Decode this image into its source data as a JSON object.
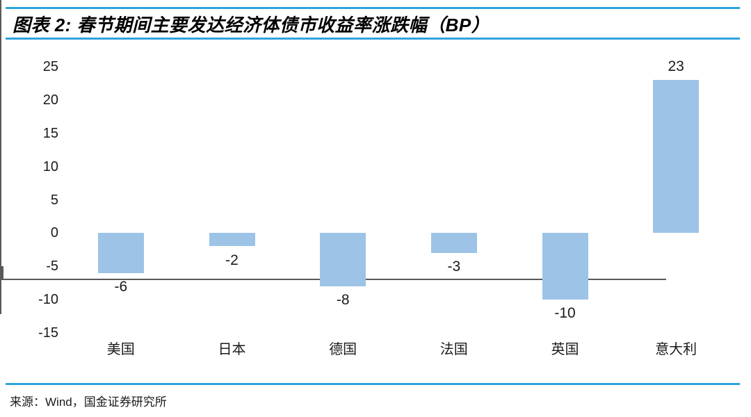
{
  "header": {
    "title": "图表 2: 春节期间主要发达经济体债市收益率涨跌幅（BP）"
  },
  "footer": {
    "source": "来源：Wind，国金证券研究所"
  },
  "colors": {
    "bar": "#9DC3E6",
    "axis": "#595959",
    "rule_blue": "#2EA3DC",
    "text": "#1a1a1a"
  },
  "chart_data": {
    "type": "bar",
    "title": "春节期间主要发达经济体债市收益率涨跌幅（BP）",
    "categories": [
      "美国",
      "日本",
      "德国",
      "法国",
      "英国",
      "意大利"
    ],
    "values": [
      -6,
      -2,
      -8,
      -3,
      -10,
      23
    ],
    "data_labels": [
      "-6",
      "-2",
      "-8",
      "-3",
      "-10",
      "23"
    ],
    "yticks": [
      25,
      20,
      15,
      10,
      5,
      0,
      -5,
      -10,
      -15
    ],
    "ylim": [
      -15,
      25
    ],
    "xlabel": "",
    "ylabel": "",
    "grid": false,
    "legend": "none",
    "source": "来源：Wind，国金证券研究所"
  }
}
